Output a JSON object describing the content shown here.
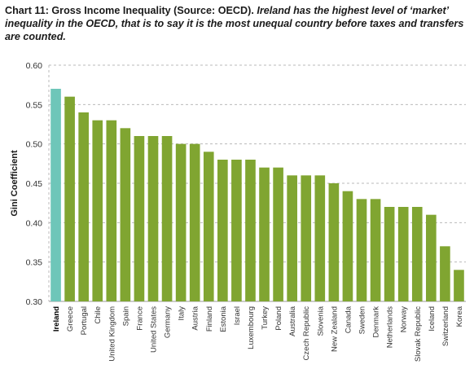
{
  "title": {
    "lead": "Chart 11: Gross Income Inequality (Source: OECD).",
    "rest": " Ireland has the highest level of ‘market’ inequality in the OECD, that is to say it is the most unequal country before taxes and transfers are counted."
  },
  "colors": {
    "highlight": "#6ec6b9",
    "bar": "#80a531",
    "grid": "#b9b9b9"
  },
  "chart_data": {
    "type": "bar",
    "ylabel": "Gini Coefficient",
    "ylim": [
      0.3,
      0.6
    ],
    "yticks": [
      "0.30",
      "0.35",
      "0.40",
      "0.45",
      "0.50",
      "0.55",
      "0.60"
    ],
    "grid": true,
    "highlight_category": "Ireland",
    "categories": [
      "Ireland",
      "Greece",
      "Portugal",
      "Chile",
      "United Kingdom",
      "Spain",
      "France",
      "United States",
      "Germany",
      "Italy",
      "Austria",
      "Finland",
      "Estonia",
      "Israel",
      "Luxembourg",
      "Turkey",
      "Poland",
      "Australia",
      "Czech Republic",
      "Slovenia",
      "New Zealand",
      "Canada",
      "Sweden",
      "Denmark",
      "Netherlands",
      "Norway",
      "Slovak Republic",
      "Iceland",
      "Switzerland",
      "Korea"
    ],
    "values": [
      0.57,
      0.56,
      0.54,
      0.53,
      0.53,
      0.52,
      0.51,
      0.51,
      0.51,
      0.5,
      0.5,
      0.49,
      0.48,
      0.48,
      0.48,
      0.47,
      0.47,
      0.46,
      0.46,
      0.46,
      0.45,
      0.44,
      0.43,
      0.43,
      0.42,
      0.42,
      0.42,
      0.41,
      0.37,
      0.34
    ]
  }
}
